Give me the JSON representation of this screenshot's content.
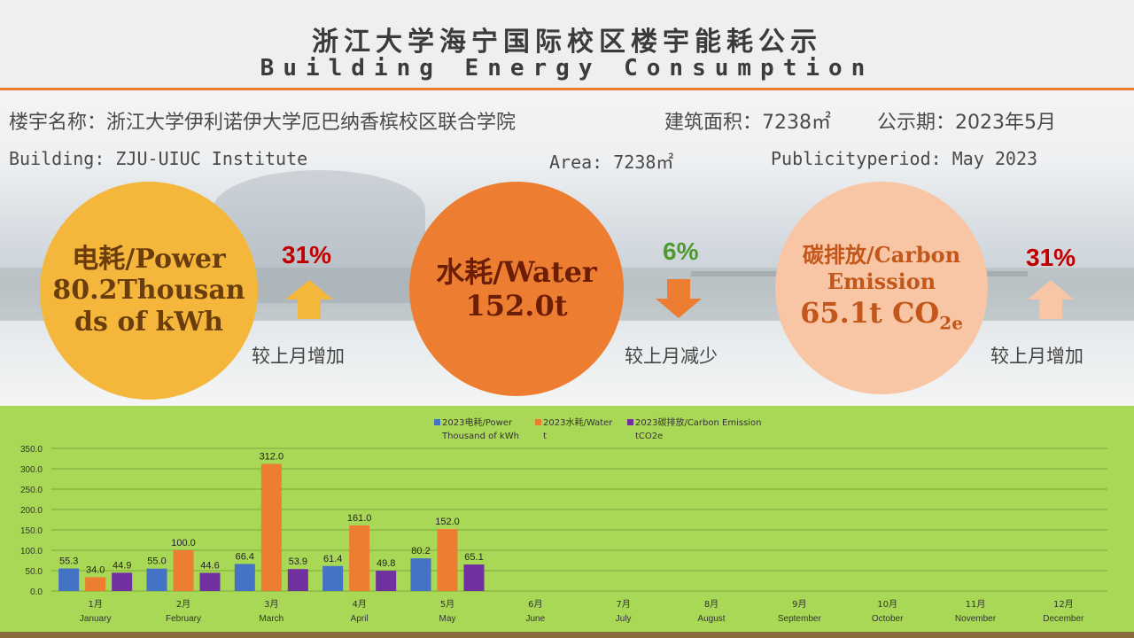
{
  "header": {
    "title_cn": "浙江大学海宁国际校区楼宇能耗公示",
    "title_en": "Building Energy Consumption"
  },
  "info": {
    "building_cn": "楼宇名称：浙江大学伊利诺伊大学厄巴纳香槟校区联合学院",
    "area_cn": "建筑面积：7238㎡",
    "period_cn": "公示期：2023年5月",
    "building_en": "Building: ZJU-UIUC Institute",
    "area_en": "Area: 7238㎡",
    "period_en": "Publicityperiod: May 2023"
  },
  "kpis": {
    "power": {
      "line1": "电耗/Power",
      "line2": "80.2Thousan",
      "line3": "ds of kWh",
      "pct": "31%",
      "compare": "较上月增加",
      "direction": "up",
      "pct_color": "#c00000",
      "arrow_color": "#f4b73b"
    },
    "water": {
      "line1": "水耗/Water",
      "line2": "152.0t",
      "pct": "6%",
      "compare": "较上月减少",
      "direction": "down",
      "pct_color": "#4f9a2f",
      "arrow_color": "#ed7d31"
    },
    "carbon": {
      "line1": "碳排放/Carbon",
      "line2": "Emission",
      "line3_value": "65.1t CO",
      "line3_sub": "2e",
      "pct": "31%",
      "compare": "较上月增加",
      "direction": "up",
      "pct_color": "#c00000",
      "arrow_color": "#f8c6a4"
    }
  },
  "chart_data": {
    "type": "bar",
    "categories": [
      "1月",
      "2月",
      "3月",
      "4月",
      "5月",
      "6月",
      "7月",
      "8月",
      "9月",
      "10月",
      "11月",
      "12月"
    ],
    "categories_en": [
      "January",
      "February",
      "March",
      "April",
      "May",
      "June",
      "July",
      "August",
      "September",
      "October",
      "November",
      "December"
    ],
    "series": [
      {
        "name": "2023电耗/Power Thousand of kWh",
        "name_l1": "2023电耗/Power",
        "name_l2": "Thousand of kWh",
        "color": "#4472c4",
        "values": [
          55.3,
          55.0,
          66.4,
          61.4,
          80.2,
          null,
          null,
          null,
          null,
          null,
          null,
          null
        ]
      },
      {
        "name": "2023水耗/Water t",
        "name_l1": "2023水耗/Water",
        "name_l2": "t",
        "color": "#ed7d31",
        "values": [
          34.0,
          100.0,
          312.0,
          161.0,
          152.0,
          null,
          null,
          null,
          null,
          null,
          null,
          null
        ]
      },
      {
        "name": "2023碳排放/Carbon Emission tCO2e",
        "name_l1": "2023碳排放/Carbon Emission",
        "name_l2": "tCO2e",
        "color": "#7030a0",
        "values": [
          44.9,
          44.6,
          53.9,
          49.8,
          65.1,
          null,
          null,
          null,
          null,
          null,
          null,
          null
        ]
      }
    ],
    "yticks": [
      "0.0",
      "50.0",
      "100.0",
      "150.0",
      "200.0",
      "250.0",
      "300.0",
      "350.0"
    ],
    "ylim": [
      0,
      350
    ],
    "grid": true,
    "legend": "top-center"
  }
}
